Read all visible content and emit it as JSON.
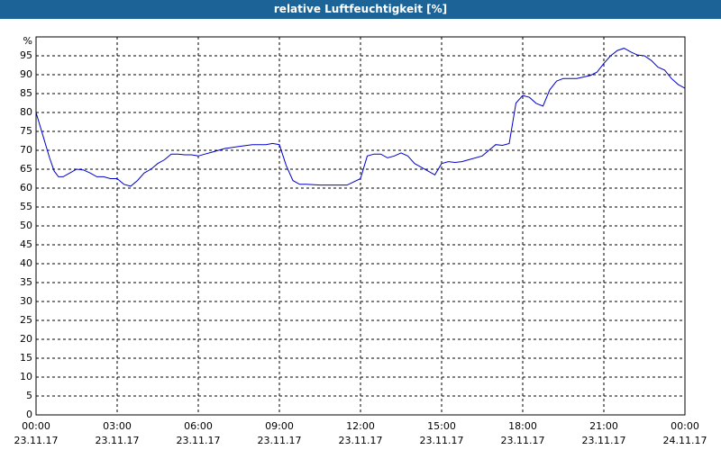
{
  "chart_data": {
    "type": "line",
    "title": "relative Luftfeuchtigkeit [%]",
    "y_unit": "%",
    "xlim": [
      0,
      24
    ],
    "xticks": [
      {
        "value": 0,
        "label": "00:00"
      },
      {
        "value": 3,
        "label": "03:00"
      },
      {
        "value": 6,
        "label": "06:00"
      },
      {
        "value": 9,
        "label": "09:00"
      },
      {
        "value": 12,
        "label": "12:00"
      },
      {
        "value": 15,
        "label": "15:00"
      },
      {
        "value": 18,
        "label": "18:00"
      },
      {
        "value": 21,
        "label": "21:00"
      },
      {
        "value": 24,
        "label": "00:00"
      }
    ],
    "xtick_dates": [
      "23.11.17",
      "23.11.17",
      "23.11.17",
      "23.11.17",
      "23.11.17",
      "23.11.17",
      "23.11.17",
      "23.11.17",
      "24.11.17"
    ],
    "ylim": [
      0,
      100
    ],
    "yticks": [
      0,
      5,
      10,
      15,
      20,
      25,
      30,
      35,
      40,
      45,
      50,
      55,
      60,
      65,
      70,
      75,
      80,
      85,
      90,
      95
    ],
    "grid": true,
    "x": [
      0,
      0.25,
      0.5,
      0.67,
      0.83,
      1,
      1.25,
      1.5,
      1.75,
      2,
      2.25,
      2.5,
      2.75,
      3,
      3.25,
      3.5,
      3.75,
      4,
      4.25,
      4.5,
      4.75,
      5,
      5.25,
      5.5,
      5.75,
      6,
      6.25,
      6.5,
      6.75,
      7,
      7.5,
      8,
      8.5,
      8.75,
      9,
      9.25,
      9.5,
      9.75,
      10,
      10.5,
      11,
      11.5,
      12,
      12.25,
      12.5,
      12.75,
      13,
      13.25,
      13.5,
      13.75,
      14,
      14.5,
      14.75,
      15,
      15.25,
      15.5,
      15.75,
      16,
      16.5,
      16.75,
      17,
      17.25,
      17.5,
      17.75,
      18,
      18.25,
      18.5,
      18.75,
      19,
      19.25,
      19.5,
      20,
      20.5,
      20.75,
      21,
      21.25,
      21.5,
      21.75,
      22,
      22.25,
      22.5,
      22.75,
      23,
      23.25,
      23.5,
      23.75,
      24
    ],
    "series": [
      {
        "color": "#0000cc",
        "values": [
          80,
          74,
          68,
          64.5,
          63,
          63,
          64,
          65,
          64.8,
          64,
          63,
          63,
          62.5,
          62.5,
          61,
          60.5,
          62,
          64,
          65,
          66.5,
          67.5,
          69,
          69,
          68.8,
          68.8,
          68.5,
          69,
          69.5,
          70,
          70.5,
          71,
          71.5,
          71.5,
          71.8,
          71.5,
          66,
          62,
          61,
          61,
          60.8,
          60.8,
          60.8,
          62.5,
          68.5,
          69,
          69,
          68,
          68.5,
          69.3,
          68.5,
          66.5,
          64.5,
          63.5,
          66.5,
          67,
          66.8,
          67,
          67.5,
          68.5,
          70,
          71.5,
          71.3,
          71.8,
          82.5,
          84.5,
          84,
          82.4,
          81.7,
          86,
          88.3,
          89,
          89,
          89.8,
          90.7,
          93,
          95,
          96.4,
          97,
          96,
          95.2,
          95,
          93.8,
          92,
          91.2,
          89,
          87.4,
          86.4
        ]
      }
    ]
  }
}
